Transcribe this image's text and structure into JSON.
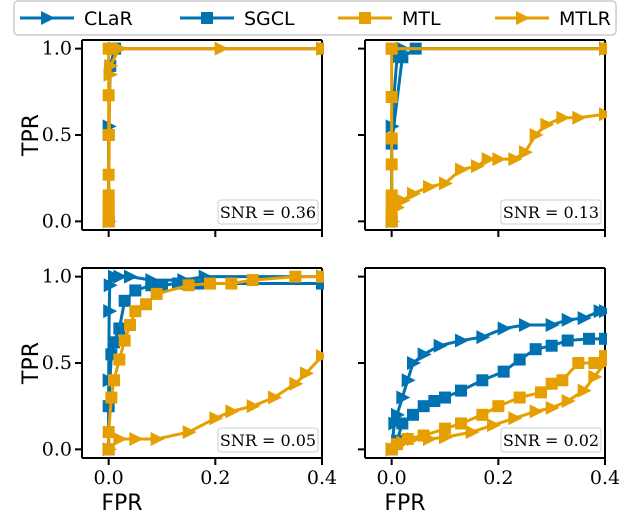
{
  "chart_data": {
    "type": "line",
    "layout": "2x2 grid",
    "colors": {
      "CLaR": "#0072b2",
      "SGCL": "#0072b2",
      "MTL": "#e69f00",
      "MTLR": "#e69f00"
    },
    "legend": {
      "placement": "top",
      "entries": [
        {
          "name": "CLaR",
          "marker": "triangle-right",
          "color": "#0072b2"
        },
        {
          "name": "SGCL",
          "marker": "square",
          "color": "#0072b2"
        },
        {
          "name": "MTL",
          "marker": "square",
          "color": "#e69f00"
        },
        {
          "name": "MTLR",
          "marker": "triangle-right",
          "color": "#e69f00"
        }
      ]
    },
    "xlim": [
      -0.05,
      0.4
    ],
    "ylim": [
      -0.05,
      1.05
    ],
    "xticks": [
      "0.0",
      "0.2",
      "0.4"
    ],
    "yticks": [
      "0.0",
      "0.5",
      "1.0"
    ],
    "xlabel": "FPR",
    "ylabel": "TPR",
    "grid": false,
    "panels": [
      {
        "annotation": "SNR = 0.36",
        "series": [
          {
            "name": "CLaR",
            "x": [
              0,
              0,
              0.002,
              0.01,
              0.4
            ],
            "y": [
              0,
              0.55,
              0.85,
              1.0,
              1.0
            ]
          },
          {
            "name": "SGCL",
            "x": [
              0,
              0,
              0.003,
              0.012,
              0.4
            ],
            "y": [
              0,
              0.5,
              0.9,
              1.0,
              1.0
            ]
          },
          {
            "name": "MTL",
            "x": [
              0,
              0,
              0,
              0,
              0,
              0,
              0,
              0,
              0,
              0.4
            ],
            "y": [
              0,
              0.02,
              0.07,
              0.1,
              0.15,
              0.27,
              0.5,
              0.73,
              1.0,
              1.0
            ]
          },
          {
            "name": "MTLR",
            "x": [
              0,
              0.002,
              0.003,
              0.02,
              0.21,
              0.4
            ],
            "y": [
              0,
              0.85,
              0.9,
              1.0,
              1.0,
              1.0
            ]
          }
        ]
      },
      {
        "annotation": "SNR = 0.13",
        "series": [
          {
            "name": "CLaR",
            "x": [
              0,
              0,
              0.01,
              0.02,
              0.4
            ],
            "y": [
              0,
              0.55,
              0.95,
              1.0,
              1.0
            ]
          },
          {
            "name": "SGCL",
            "x": [
              0,
              0,
              0.02,
              0.045,
              0.4
            ],
            "y": [
              0,
              0.45,
              0.95,
              1.0,
              1.0
            ]
          },
          {
            "name": "MTL",
            "x": [
              0,
              0,
              0,
              0,
              0,
              0,
              0,
              0,
              0,
              0.4
            ],
            "y": [
              0,
              0.05,
              0.1,
              0.15,
              0.33,
              0.48,
              0.72,
              1.0,
              1.0,
              1.0
            ]
          },
          {
            "name": "MTLR",
            "x": [
              0,
              0.01,
              0.02,
              0.04,
              0.07,
              0.1,
              0.13,
              0.16,
              0.18,
              0.2,
              0.23,
              0.25,
              0.27,
              0.29,
              0.32,
              0.35,
              0.4
            ],
            "y": [
              0,
              0.08,
              0.12,
              0.16,
              0.2,
              0.22,
              0.3,
              0.32,
              0.36,
              0.36,
              0.36,
              0.4,
              0.5,
              0.56,
              0.6,
              0.6,
              0.62
            ]
          }
        ]
      },
      {
        "annotation": "SNR = 0.05",
        "series": [
          {
            "name": "CLaR",
            "x": [
              0,
              0,
              0.001,
              0.002,
              0.01,
              0.02,
              0.04,
              0.08,
              0.14,
              0.18,
              0.4
            ],
            "y": [
              0,
              0.4,
              0.8,
              0.95,
              1.0,
              1.0,
              1.0,
              0.98,
              0.98,
              1.0,
              1.0
            ]
          },
          {
            "name": "SGCL",
            "x": [
              0,
              0,
              0.005,
              0.01,
              0.02,
              0.03,
              0.05,
              0.08,
              0.1,
              0.13,
              0.15,
              0.17,
              0.4
            ],
            "y": [
              0,
              0.25,
              0.55,
              0.62,
              0.7,
              0.86,
              0.92,
              0.95,
              0.95,
              0.96,
              0.96,
              0.96,
              0.96
            ]
          },
          {
            "name": "MTL",
            "x": [
              0,
              0,
              0.005,
              0.01,
              0.02,
              0.03,
              0.04,
              0.05,
              0.07,
              0.09,
              0.15,
              0.19,
              0.23,
              0.27,
              0.35,
              0.4
            ],
            "y": [
              0,
              0.1,
              0.3,
              0.4,
              0.52,
              0.63,
              0.72,
              0.8,
              0.84,
              0.9,
              0.95,
              0.96,
              0.96,
              0.98,
              1.0,
              1.0
            ]
          },
          {
            "name": "MTLR",
            "x": [
              0,
              0.02,
              0.05,
              0.09,
              0.15,
              0.2,
              0.23,
              0.27,
              0.31,
              0.35,
              0.37,
              0.4
            ],
            "y": [
              0,
              0.06,
              0.06,
              0.06,
              0.1,
              0.18,
              0.22,
              0.25,
              0.3,
              0.38,
              0.44,
              0.54
            ]
          }
        ]
      },
      {
        "annotation": "SNR = 0.02",
        "series": [
          {
            "name": "CLaR",
            "x": [
              0,
              0.005,
              0.01,
              0.02,
              0.03,
              0.04,
              0.06,
              0.09,
              0.13,
              0.17,
              0.21,
              0.25,
              0.3,
              0.33,
              0.36,
              0.39,
              0.4
            ],
            "y": [
              0,
              0.15,
              0.2,
              0.3,
              0.4,
              0.5,
              0.55,
              0.6,
              0.63,
              0.65,
              0.7,
              0.72,
              0.72,
              0.75,
              0.76,
              0.8,
              0.8
            ]
          },
          {
            "name": "SGCL",
            "x": [
              0,
              0.01,
              0.02,
              0.04,
              0.06,
              0.08,
              0.1,
              0.13,
              0.17,
              0.21,
              0.24,
              0.27,
              0.3,
              0.33,
              0.37,
              0.4
            ],
            "y": [
              0,
              0.05,
              0.15,
              0.2,
              0.25,
              0.28,
              0.3,
              0.34,
              0.4,
              0.45,
              0.52,
              0.58,
              0.6,
              0.63,
              0.64,
              0.64
            ]
          },
          {
            "name": "MTL",
            "x": [
              0,
              0.01,
              0.03,
              0.06,
              0.1,
              0.13,
              0.17,
              0.2,
              0.24,
              0.28,
              0.3,
              0.32,
              0.35,
              0.38,
              0.4
            ],
            "y": [
              0,
              0.03,
              0.06,
              0.08,
              0.12,
              0.15,
              0.2,
              0.25,
              0.3,
              0.33,
              0.38,
              0.4,
              0.5,
              0.5,
              0.54
            ]
          },
          {
            "name": "MTLR",
            "x": [
              0,
              0.01,
              0.02,
              0.04,
              0.07,
              0.1,
              0.15,
              0.19,
              0.23,
              0.27,
              0.3,
              0.33,
              0.36,
              0.38,
              0.4
            ],
            "y": [
              0,
              0.02,
              0.04,
              0.06,
              0.06,
              0.07,
              0.1,
              0.14,
              0.18,
              0.22,
              0.24,
              0.28,
              0.34,
              0.42,
              0.5
            ]
          }
        ]
      }
    ]
  }
}
